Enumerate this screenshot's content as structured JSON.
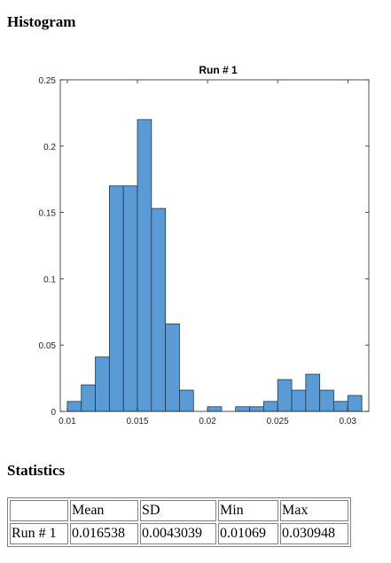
{
  "page": {
    "histogram_heading": "Histogram",
    "statistics_heading": "Statistics"
  },
  "chart_data": {
    "type": "bar",
    "title": "Run # 1",
    "xlabel": "",
    "ylabel": "",
    "xlim": [
      0.0095,
      0.0315
    ],
    "ylim": [
      0,
      0.25
    ],
    "x_ticks": [
      0.01,
      0.015,
      0.02,
      0.025,
      0.03
    ],
    "x_tick_labels": [
      "0.01",
      "0.015",
      "0.02",
      "0.025",
      "0.03"
    ],
    "y_ticks": [
      0,
      0.05,
      0.1,
      0.15,
      0.2,
      0.25
    ],
    "y_tick_labels": [
      "0",
      "0.05",
      "0.1",
      "0.15",
      "0.2",
      "0.25"
    ],
    "bin_start": 0.01,
    "bin_width": 0.001,
    "values": [
      0.0075,
      0.02,
      0.041,
      0.17,
      0.17,
      0.22,
      0.153,
      0.066,
      0.016,
      0,
      0.0035,
      0,
      0.0035,
      0.0035,
      0.0075,
      0.024,
      0.016,
      0.028,
      0.016,
      0.0075,
      0.012
    ],
    "bar_color": "#5b9bd5",
    "bar_edge_color": "#1f3a52",
    "grid": false,
    "legend": "none"
  },
  "statistics": {
    "headers": [
      "",
      "Mean",
      "SD",
      "Min",
      "Max"
    ],
    "rows": [
      {
        "label": "Run # 1",
        "mean": "0.016538",
        "sd": "0.0043039",
        "min": "0.01069",
        "max": "0.030948"
      }
    ]
  }
}
